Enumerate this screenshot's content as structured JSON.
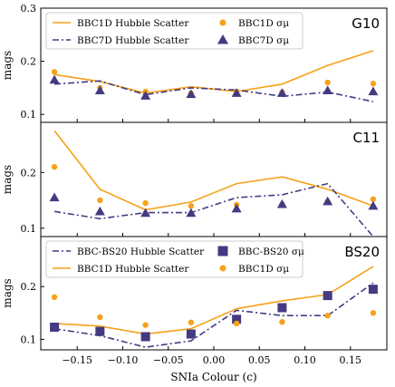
{
  "chart_data": {
    "type": "line",
    "xlabel": "SNIa Colour (c)",
    "xlim": [
      -0.19,
      0.19
    ],
    "xticks": [
      "−0.15",
      "−0.10",
      "−0.05",
      "0.00",
      "0.05",
      "0.10",
      "0.15"
    ],
    "x": [
      -0.175,
      -0.125,
      -0.075,
      -0.025,
      0.025,
      0.075,
      0.125,
      0.175
    ],
    "colors": {
      "orange": "#f5a21b",
      "purple": "#443a82"
    },
    "panels": [
      {
        "label": "G10",
        "ylabel": "mags",
        "ylim": [
          0.085,
          0.3
        ],
        "yticks": [
          "0.1",
          "0.2",
          "0.3"
        ],
        "legend_position": "top-left",
        "series": [
          {
            "name": "BBC1D Hubble Scatter",
            "kind": "line",
            "color": "orange",
            "style": "solid",
            "values": [
              0.175,
              0.162,
              0.14,
              0.152,
              0.143,
              0.157,
              0.192,
              0.22
            ]
          },
          {
            "name": "BBC7D Hubble Scatter",
            "kind": "line",
            "color": "purple",
            "style": "dashdot",
            "values": [
              0.157,
              0.163,
              0.137,
              0.15,
              0.146,
              0.134,
              0.142,
              0.124
            ]
          },
          {
            "name": "BBC1D σμ",
            "kind": "scatter",
            "color": "orange",
            "marker": "circle",
            "values": [
              0.18,
              0.15,
              0.143,
              0.14,
              0.143,
              0.142,
              0.16,
              0.158
            ]
          },
          {
            "name": "BBC7D σμ",
            "kind": "scatter",
            "color": "purple",
            "marker": "triangle",
            "values": [
              0.165,
              0.145,
              0.135,
              0.138,
              0.14,
              0.14,
              0.145,
              0.143
            ]
          }
        ]
      },
      {
        "label": "C11",
        "ylabel": "mags",
        "ylim": [
          0.085,
          0.29
        ],
        "yticks": [
          "0.1",
          "0.2"
        ],
        "series": [
          {
            "name": "",
            "kind": "line",
            "color": "orange",
            "style": "solid",
            "values": [
              0.275,
              0.17,
              0.133,
              0.147,
              0.18,
              0.192,
              0.17,
              0.14
            ]
          },
          {
            "name": "",
            "kind": "line",
            "color": "purple",
            "style": "dashdot",
            "values": [
              0.13,
              0.117,
              0.128,
              0.128,
              0.155,
              0.16,
              0.18,
              0.085
            ]
          },
          {
            "name": "",
            "kind": "scatter",
            "color": "orange",
            "marker": "circle",
            "values": [
              0.21,
              0.15,
              0.145,
              0.14,
              0.142,
              0.143,
              0.148,
              0.152
            ]
          },
          {
            "name": "",
            "kind": "scatter",
            "color": "purple",
            "marker": "triangle",
            "values": [
              0.155,
              0.13,
              0.127,
              0.127,
              0.135,
              0.143,
              0.148,
              0.14
            ]
          }
        ]
      },
      {
        "label": "BS20",
        "ylabel": "mags",
        "ylim": [
          0.08,
          0.295
        ],
        "yticks": [
          "0.1",
          "0.2"
        ],
        "legend_position": "top-left",
        "series": [
          {
            "name": "BBC-BS20 Hubble Scatter",
            "kind": "line",
            "color": "purple",
            "style": "dashdot",
            "values": [
              0.12,
              0.107,
              0.085,
              0.097,
              0.155,
              0.145,
              0.145,
              0.207
            ]
          },
          {
            "name": "BBC1D Hubble Scatter",
            "kind": "line",
            "color": "orange",
            "style": "solid",
            "values": [
              0.13,
              0.125,
              0.11,
              0.12,
              0.158,
              0.173,
              0.185,
              0.238
            ]
          },
          {
            "name": "BBC-BS20 σμ",
            "kind": "scatter",
            "color": "purple",
            "marker": "square",
            "values": [
              0.123,
              0.115,
              0.105,
              0.11,
              0.138,
              0.16,
              0.183,
              0.195
            ]
          },
          {
            "name": "BBC1D σμ",
            "kind": "scatter",
            "color": "orange",
            "marker": "circle",
            "values": [
              0.18,
              0.142,
              0.127,
              0.132,
              0.13,
              0.133,
              0.145,
              0.15
            ]
          }
        ]
      }
    ]
  }
}
